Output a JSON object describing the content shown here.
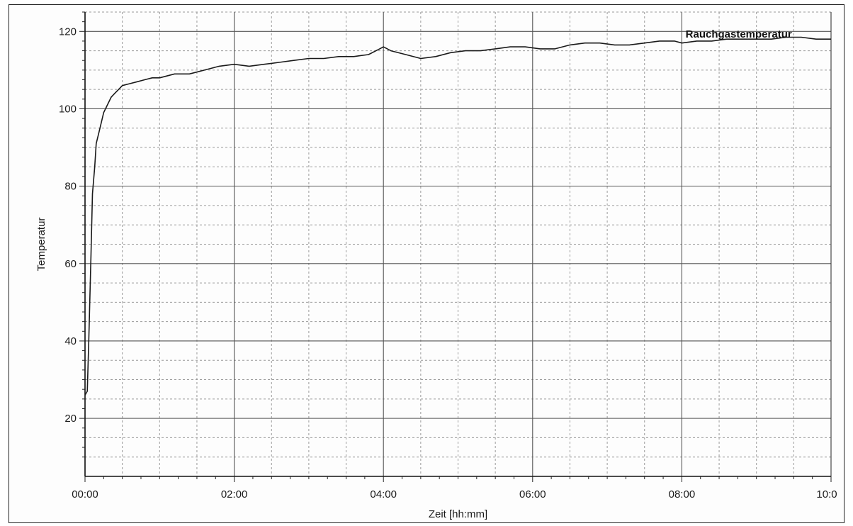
{
  "chart_data": {
    "type": "line",
    "title": "",
    "xlabel": "Zeit [hh:mm]",
    "ylabel": "Temperatur",
    "xlim": [
      0,
      10
    ],
    "ylim": [
      5,
      125
    ],
    "x_ticks": [
      0,
      2,
      4,
      6,
      8,
      10
    ],
    "x_tick_labels": [
      "00:00",
      "02:00",
      "04:00",
      "06:00",
      "08:00",
      "10:0"
    ],
    "y_ticks": [
      20,
      40,
      60,
      80,
      100,
      120
    ],
    "y_tick_labels": [
      "20",
      "40",
      "60",
      "80",
      "100",
      "120"
    ],
    "grid": true,
    "series": [
      {
        "name": "Rauchgastemperatur",
        "color": "#1a1a1a",
        "x": [
          0.0,
          0.03,
          0.05,
          0.08,
          0.1,
          0.13,
          0.15,
          0.2,
          0.25,
          0.3,
          0.35,
          0.4,
          0.45,
          0.5,
          0.6,
          0.7,
          0.8,
          0.9,
          1.0,
          1.2,
          1.4,
          1.6,
          1.8,
          2.0,
          2.2,
          2.4,
          2.6,
          2.8,
          3.0,
          3.2,
          3.4,
          3.6,
          3.8,
          3.95,
          4.0,
          4.1,
          4.3,
          4.5,
          4.7,
          4.9,
          5.1,
          5.3,
          5.5,
          5.7,
          5.9,
          6.1,
          6.3,
          6.5,
          6.7,
          6.9,
          7.1,
          7.3,
          7.5,
          7.7,
          7.9,
          8.0,
          8.2,
          8.4,
          8.6,
          8.8,
          9.0,
          9.2,
          9.4,
          9.6,
          9.8,
          10.0
        ],
        "y": [
          26,
          27,
          40,
          62,
          78,
          85,
          91,
          95,
          99,
          101,
          103,
          104,
          105,
          106,
          106.5,
          107,
          107.5,
          108,
          108,
          109,
          109,
          110,
          111,
          111.5,
          111,
          111.5,
          112,
          112.5,
          113,
          113,
          113.5,
          113.5,
          114,
          115.5,
          116,
          115,
          114,
          113,
          113.5,
          114.5,
          115,
          115,
          115.5,
          116,
          116,
          115.5,
          115.5,
          116.5,
          117,
          117,
          116.5,
          116.5,
          117,
          117.5,
          117.5,
          117,
          117.5,
          117.5,
          118,
          118,
          118,
          118,
          118.5,
          118.5,
          118,
          118
        ]
      }
    ]
  }
}
